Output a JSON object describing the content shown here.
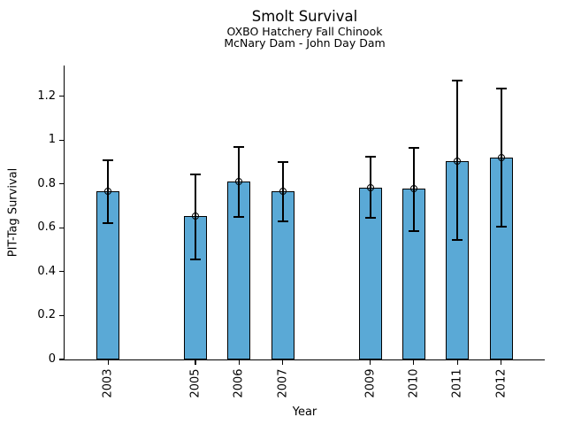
{
  "chart_data": {
    "type": "bar",
    "title": "Smolt Survival",
    "subtitle_line1": "OXBO Hatchery Fall Chinook",
    "subtitle_line2": "McNary Dam - John Day Dam",
    "xlabel": "Year",
    "ylabel": "PIT-Tag Survival",
    "categories": [
      "2003",
      "2005",
      "2006",
      "2007",
      "2009",
      "2010",
      "2011",
      "2012"
    ],
    "x_years": [
      2003,
      2005,
      2006,
      2007,
      2009,
      2010,
      2011,
      2012
    ],
    "values": [
      0.765,
      0.655,
      0.81,
      0.765,
      0.785,
      0.78,
      0.905,
      0.92
    ],
    "error_low": [
      0.62,
      0.455,
      0.65,
      0.63,
      0.645,
      0.585,
      0.545,
      0.605
    ],
    "error_high": [
      0.91,
      0.845,
      0.97,
      0.9,
      0.925,
      0.965,
      1.27,
      1.235
    ],
    "xlim": [
      2002,
      2013
    ],
    "ylim": [
      0,
      1.34
    ],
    "ytick_values": [
      0,
      0.2,
      0.4,
      0.6,
      0.8,
      1,
      1.2
    ],
    "ytick_labels": [
      "0",
      "0.2",
      "0.4",
      "0.6",
      "0.8",
      "1",
      "1.2"
    ],
    "bar_color": "#5AA9D6",
    "bar_edge_color": "#000000",
    "error_color": "#000000",
    "marker_style": "open-circle",
    "grid": false,
    "legend_position": "none",
    "x_tick_label_rotation_deg": 90
  }
}
